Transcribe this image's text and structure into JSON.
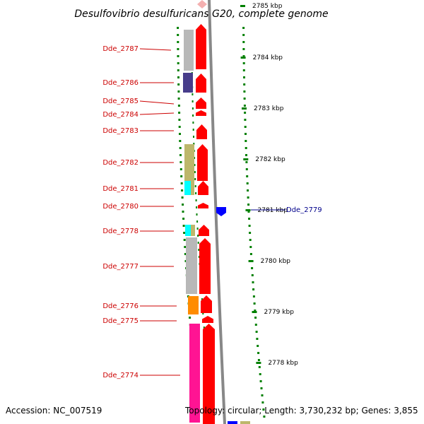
{
  "title": "Desulfovibrio desulfuricans G20, complete genome",
  "accession": "Accession: NC_007519",
  "topology": "Topology: circular; Length: 3,730,232 bp; Genes: 3,855",
  "kbp_ticks": [
    {
      "label": "2785 kbp"
    },
    {
      "label": "2784 kbp"
    },
    {
      "label": "2783 kbp"
    },
    {
      "label": "2782 kbp"
    },
    {
      "label": "2781 kbp"
    },
    {
      "label": "2780 kbp"
    },
    {
      "label": "2779 kbp"
    },
    {
      "label": "2778 kbp"
    }
  ],
  "genes_left": [
    {
      "label": "Dde_2787",
      "cog_color": "#b8b8b8"
    },
    {
      "label": "Dde_2786",
      "cog_color": "#483d8b"
    },
    {
      "label": "Dde_2785",
      "cog_color": ""
    },
    {
      "label": "Dde_2784",
      "cog_color": ""
    },
    {
      "label": "Dde_2783",
      "cog_color": ""
    },
    {
      "label": "Dde_2782",
      "cog_color": "#bdb76b"
    },
    {
      "label": "Dde_2781",
      "cog_color": "#00ffff"
    },
    {
      "label": "Dde_2780",
      "cog_color": ""
    },
    {
      "label": "Dde_2778",
      "cog_color": "#00ffff"
    },
    {
      "label": "Dde_2777",
      "cog_color": "#b8b8b8"
    },
    {
      "label": "Dde_2776",
      "cog_color": "#ff8c00"
    },
    {
      "label": "Dde_2775",
      "cog_color": ""
    },
    {
      "label": "Dde_2774",
      "cog_color": "#ff1493"
    }
  ],
  "gene_right": {
    "label": "Dde_2779"
  },
  "colors": {
    "forward_strand": "#ff0000",
    "reverse_strand": "#0000ff",
    "tick_green": "#008000",
    "backbone": "#888888",
    "label_red": "#cc0000",
    "label_blue": "#00008b"
  }
}
